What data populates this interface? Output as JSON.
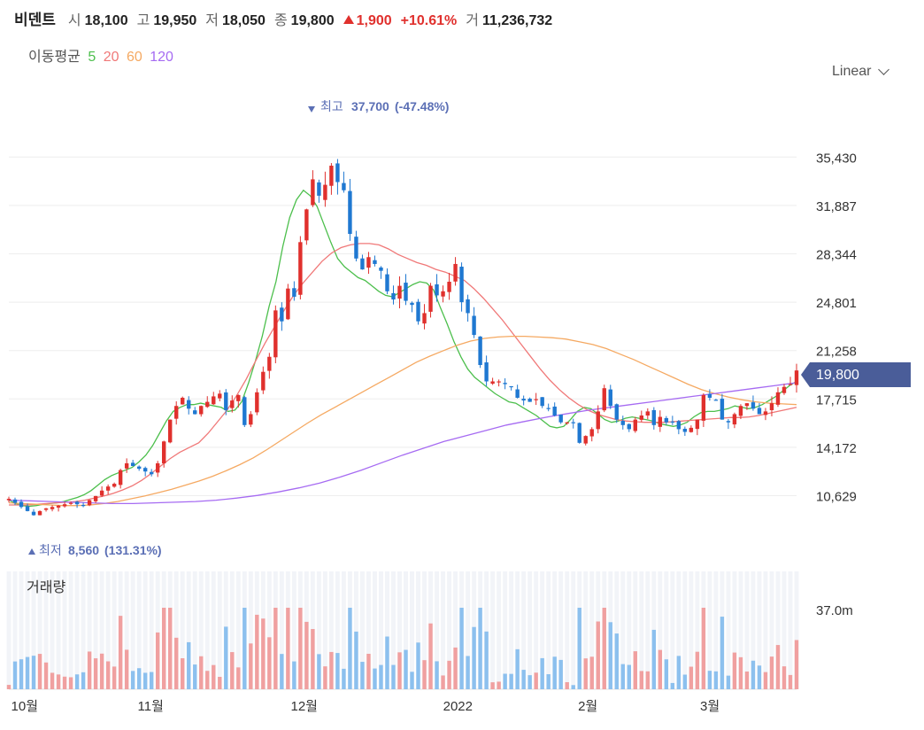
{
  "header": {
    "name": "비덴트",
    "open_label": "시",
    "open": "18,100",
    "high_label": "고",
    "high": "19,950",
    "low_label": "저",
    "low": "18,050",
    "close_label": "종",
    "close": "19,800",
    "change": "1,900",
    "change_pct": "+10.61%",
    "volume_label": "거",
    "volume": "11,236,732"
  },
  "ma_legend": {
    "label": "이동평균",
    "p5": "5",
    "p20": "20",
    "p60": "60",
    "p120": "120"
  },
  "scale_select": {
    "value": "Linear"
  },
  "colors": {
    "up": "#e0302d",
    "down": "#1f78d1",
    "ma5": "#4cbf4c",
    "ma20": "#f07878",
    "ma60": "#f5a962",
    "ma120": "#a66bf2",
    "vol_up": "#f0a0a0",
    "vol_down": "#8cc0ee",
    "badge": "#4a5d99"
  },
  "chart_data": {
    "type": "candlestick",
    "x_ticks": [
      "10월",
      "11월",
      "12월",
      "2022",
      "2월",
      "3월"
    ],
    "y_ticks": [
      "35,430",
      "31,887",
      "28,344",
      "24,801",
      "21,258",
      "17,715",
      "14,172",
      "10,629"
    ],
    "ylim": [
      8000,
      38500
    ],
    "current_price": "19,800",
    "high_annotation": {
      "label": "최고",
      "value": "37,700",
      "pct": "(-47.48%)"
    },
    "low_annotation": {
      "label": "최저",
      "value": "8,560",
      "pct": "(131.31%)"
    },
    "volume_panel": {
      "title": "거래량",
      "tick": "37.0m"
    },
    "closes": [
      10400,
      10100,
      9800,
      9500,
      9200,
      9500,
      9700,
      9800,
      9900,
      10000,
      10100,
      10000,
      9900,
      10300,
      10600,
      11000,
      11300,
      11500,
      12500,
      13000,
      12800,
      12600,
      12400,
      12200,
      13000,
      14600,
      16200,
      17200,
      17800,
      17000,
      16600,
      17200,
      17500,
      17900,
      18100,
      16900,
      17600,
      18000,
      15800,
      16600,
      18200,
      19700,
      20800,
      24200,
      23400,
      25800,
      25200,
      29200,
      31600,
      33800,
      32600,
      33400,
      34800,
      33600,
      33000,
      29800,
      28000,
      27200,
      28100,
      27600,
      27100,
      25600,
      25000,
      26000,
      24900,
      24600,
      23400,
      24000,
      26000,
      25300,
      25600,
      26300,
      27600,
      24800,
      24000,
      22400,
      20200,
      19000,
      19000,
      19000,
      18800,
      18600,
      17800,
      17600,
      17500,
      17700,
      17200,
      17000,
      16500,
      16000,
      16000,
      16000,
      14500,
      15000,
      15500,
      16800,
      18500,
      17200,
      16200,
      15800,
      15500,
      16200,
      16500,
      16800,
      15800,
      16400,
      16000,
      16000,
      15500,
      15300,
      15600,
      16200,
      18000,
      17800,
      17600,
      16200,
      16000,
      16600,
      17200,
      17400,
      17000,
      16600,
      16800,
      17400,
      18200,
      18600,
      18800,
      19800
    ],
    "ma_series": [
      {
        "name": "5",
        "key": "ma5",
        "values": [
          10300,
          10050,
          9900,
          9850,
          9900,
          10000,
          10050,
          10100,
          10200,
          10350,
          10500,
          10700,
          11000,
          11400,
          11800,
          12100,
          12300,
          12500,
          12700,
          13100,
          13600,
          14300,
          15200,
          16100,
          16800,
          17100,
          17300,
          17300,
          17400,
          17300,
          17200,
          17100,
          16800,
          16900,
          17500,
          18900,
          20500,
          22300,
          24500,
          26300,
          28900,
          31000,
          32300,
          33000,
          32600,
          31800,
          30500,
          29200,
          28000,
          27400,
          27000,
          26600,
          26400,
          26000,
          25600,
          25300,
          25200,
          25500,
          25800,
          26100,
          26300,
          26200,
          25700,
          24400,
          23200,
          21900,
          20800,
          19900,
          19300,
          18900,
          18500,
          18100,
          17800,
          17500,
          17400,
          17100,
          16800,
          16500,
          16100,
          15700,
          15600,
          15700,
          16200,
          16800,
          17100,
          17000,
          16600,
          16200,
          16000,
          16100,
          16300,
          16400,
          16300,
          16200,
          16100,
          15900,
          15800,
          15700,
          15800,
          16000,
          16400,
          16700,
          16800,
          16800,
          16900,
          17000,
          17200,
          17100,
          17000,
          17100,
          17300,
          17600,
          17900,
          18300,
          18700,
          19000
        ]
      },
      {
        "name": "20",
        "key": "ma20",
        "values": [
          9950,
          9950,
          9950,
          10000,
          10050,
          10100,
          10150,
          10200,
          10300,
          10450,
          10600,
          10800,
          11050,
          11350,
          11750,
          12250,
          12800,
          13350,
          13800,
          14150,
          14500,
          15200,
          16050,
          16900,
          17950,
          19150,
          20500,
          21800,
          23000,
          24200,
          25300,
          26200,
          27000,
          27800,
          28400,
          28800,
          29000,
          29100,
          29100,
          29000,
          28700,
          28300,
          28000,
          27700,
          27500,
          27200,
          27000,
          26700,
          26400,
          25800,
          25100,
          24300,
          23500,
          22600,
          21700,
          20800,
          19900,
          19100,
          18400,
          17800,
          17300,
          16900,
          16600,
          16400,
          16200,
          16100,
          16050,
          16000,
          16000,
          16000,
          16050,
          16100,
          16150,
          16200,
          16250,
          16300,
          16350,
          16350,
          16400,
          16500,
          16650,
          16800,
          16950,
          17100
        ]
      },
      {
        "name": "60",
        "key": "ma60",
        "values": [
          10100,
          10050,
          10000,
          9950,
          9900,
          9900,
          9950,
          10050,
          10200,
          10400,
          10600,
          10850,
          11100,
          11400,
          11700,
          12050,
          12450,
          12900,
          13400,
          14000,
          14650,
          15300,
          15950,
          16550,
          17100,
          17650,
          18200,
          18750,
          19300,
          19850,
          20400,
          20850,
          21250,
          21650,
          21950,
          22150,
          22250,
          22300,
          22300,
          22250,
          22200,
          22100,
          21900,
          21700,
          21400,
          21000,
          20600,
          20150,
          19700,
          19250,
          18800,
          18400,
          18100,
          17850,
          17650,
          17500,
          17400,
          17350,
          17300
        ]
      },
      {
        "name": "120",
        "key": "ma120",
        "values": [
          10300,
          10250,
          10200,
          10150,
          10100,
          10050,
          10050,
          10100,
          10150,
          10200,
          10300,
          10450,
          10650,
          10900,
          11200,
          11550,
          12000,
          12500,
          13050,
          13600,
          14100,
          14600,
          15000,
          15400,
          15800,
          16100,
          16400,
          16650,
          16900,
          17100,
          17300,
          17500,
          17700,
          17900,
          18100,
          18300,
          18500,
          18700,
          18900
        ]
      }
    ]
  }
}
